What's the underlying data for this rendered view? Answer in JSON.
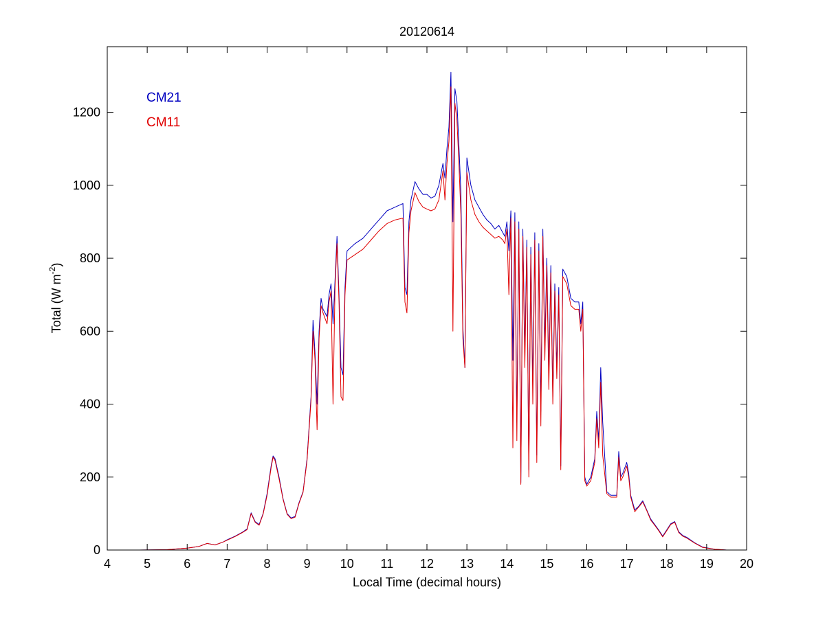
{
  "chart_data": {
    "type": "line",
    "title": "20120614",
    "xlabel": "Local Time (decimal hours)",
    "ylabel": "Total (W m",
    "ylabel_sup": "-2",
    "ylabel_end": ")",
    "xlim": [
      4,
      20
    ],
    "ylim": [
      0,
      1380
    ],
    "xticks": [
      4,
      5,
      6,
      7,
      8,
      9,
      10,
      11,
      12,
      13,
      14,
      15,
      16,
      17,
      18,
      19,
      20
    ],
    "yticks": [
      0,
      200,
      400,
      600,
      800,
      1000,
      1200
    ],
    "grid": false,
    "legend_position": "top-left",
    "series": [
      {
        "name": "CM21",
        "color": "#0000c0",
        "points": [
          [
            4.8,
            0
          ],
          [
            5.5,
            1
          ],
          [
            6.0,
            5
          ],
          [
            6.3,
            10
          ],
          [
            6.5,
            18
          ],
          [
            6.7,
            14
          ],
          [
            6.9,
            22
          ],
          [
            7.0,
            28
          ],
          [
            7.2,
            38
          ],
          [
            7.4,
            50
          ],
          [
            7.5,
            58
          ],
          [
            7.6,
            102
          ],
          [
            7.7,
            78
          ],
          [
            7.8,
            70
          ],
          [
            7.9,
            100
          ],
          [
            8.0,
            155
          ],
          [
            8.1,
            230
          ],
          [
            8.15,
            258
          ],
          [
            8.2,
            250
          ],
          [
            8.3,
            200
          ],
          [
            8.4,
            140
          ],
          [
            8.5,
            100
          ],
          [
            8.6,
            88
          ],
          [
            8.7,
            92
          ],
          [
            8.8,
            130
          ],
          [
            8.9,
            160
          ],
          [
            9.0,
            250
          ],
          [
            9.1,
            420
          ],
          [
            9.15,
            630
          ],
          [
            9.2,
            540
          ],
          [
            9.25,
            400
          ],
          [
            9.3,
            600
          ],
          [
            9.35,
            690
          ],
          [
            9.4,
            660
          ],
          [
            9.5,
            640
          ],
          [
            9.55,
            700
          ],
          [
            9.6,
            730
          ],
          [
            9.65,
            620
          ],
          [
            9.7,
            740
          ],
          [
            9.75,
            860
          ],
          [
            9.8,
            700
          ],
          [
            9.85,
            500
          ],
          [
            9.9,
            480
          ],
          [
            9.95,
            720
          ],
          [
            10.0,
            820
          ],
          [
            10.2,
            840
          ],
          [
            10.4,
            855
          ],
          [
            10.6,
            880
          ],
          [
            10.8,
            905
          ],
          [
            11.0,
            930
          ],
          [
            11.2,
            940
          ],
          [
            11.4,
            950
          ],
          [
            11.45,
            720
          ],
          [
            11.5,
            700
          ],
          [
            11.55,
            900
          ],
          [
            11.6,
            960
          ],
          [
            11.7,
            1010
          ],
          [
            11.8,
            990
          ],
          [
            11.9,
            975
          ],
          [
            12.0,
            975
          ],
          [
            12.1,
            965
          ],
          [
            12.2,
            970
          ],
          [
            12.3,
            1000
          ],
          [
            12.4,
            1060
          ],
          [
            12.45,
            1020
          ],
          [
            12.5,
            1100
          ],
          [
            12.55,
            1160
          ],
          [
            12.6,
            1310
          ],
          [
            12.65,
            900
          ],
          [
            12.7,
            1265
          ],
          [
            12.75,
            1230
          ],
          [
            12.8,
            1110
          ],
          [
            12.85,
            980
          ],
          [
            12.9,
            610
          ],
          [
            12.95,
            500
          ],
          [
            13.0,
            1075
          ],
          [
            13.1,
            1000
          ],
          [
            13.2,
            960
          ],
          [
            13.3,
            940
          ],
          [
            13.4,
            920
          ],
          [
            13.5,
            905
          ],
          [
            13.6,
            895
          ],
          [
            13.7,
            880
          ],
          [
            13.8,
            890
          ],
          [
            13.9,
            870
          ],
          [
            13.95,
            860
          ],
          [
            14.0,
            900
          ],
          [
            14.05,
            820
          ],
          [
            14.1,
            930
          ],
          [
            14.15,
            520
          ],
          [
            14.2,
            925
          ],
          [
            14.25,
            350
          ],
          [
            14.3,
            900
          ],
          [
            14.35,
            185
          ],
          [
            14.4,
            880
          ],
          [
            14.45,
            540
          ],
          [
            14.5,
            850
          ],
          [
            14.55,
            220
          ],
          [
            14.6,
            830
          ],
          [
            14.65,
            450
          ],
          [
            14.7,
            870
          ],
          [
            14.75,
            260
          ],
          [
            14.8,
            840
          ],
          [
            14.85,
            380
          ],
          [
            14.9,
            880
          ],
          [
            14.95,
            560
          ],
          [
            15.0,
            800
          ],
          [
            15.05,
            480
          ],
          [
            15.1,
            780
          ],
          [
            15.15,
            420
          ],
          [
            15.2,
            730
          ],
          [
            15.25,
            500
          ],
          [
            15.3,
            720
          ],
          [
            15.35,
            230
          ],
          [
            15.4,
            770
          ],
          [
            15.5,
            750
          ],
          [
            15.6,
            690
          ],
          [
            15.7,
            680
          ],
          [
            15.8,
            680
          ],
          [
            15.85,
            620
          ],
          [
            15.9,
            680
          ],
          [
            15.95,
            200
          ],
          [
            16.0,
            180
          ],
          [
            16.1,
            200
          ],
          [
            16.2,
            250
          ],
          [
            16.25,
            380
          ],
          [
            16.3,
            300
          ],
          [
            16.35,
            500
          ],
          [
            16.4,
            350
          ],
          [
            16.5,
            160
          ],
          [
            16.6,
            150
          ],
          [
            16.7,
            150
          ],
          [
            16.75,
            150
          ],
          [
            16.8,
            270
          ],
          [
            16.85,
            200
          ],
          [
            16.9,
            210
          ],
          [
            17.0,
            240
          ],
          [
            17.05,
            210
          ],
          [
            17.1,
            150
          ],
          [
            17.2,
            110
          ],
          [
            17.3,
            120
          ],
          [
            17.4,
            135
          ],
          [
            17.5,
            110
          ],
          [
            17.6,
            85
          ],
          [
            17.7,
            70
          ],
          [
            17.8,
            55
          ],
          [
            17.9,
            38
          ],
          [
            18.0,
            55
          ],
          [
            18.1,
            72
          ],
          [
            18.2,
            78
          ],
          [
            18.3,
            50
          ],
          [
            18.4,
            40
          ],
          [
            18.5,
            35
          ],
          [
            18.7,
            20
          ],
          [
            18.9,
            8
          ],
          [
            19.2,
            2
          ],
          [
            19.5,
            0
          ]
        ]
      },
      {
        "name": "CM11",
        "color": "#e00000",
        "points": [
          [
            4.8,
            0
          ],
          [
            5.5,
            1
          ],
          [
            6.0,
            5
          ],
          [
            6.3,
            10
          ],
          [
            6.5,
            18
          ],
          [
            6.7,
            14
          ],
          [
            6.9,
            22
          ],
          [
            7.0,
            27
          ],
          [
            7.2,
            37
          ],
          [
            7.4,
            49
          ],
          [
            7.5,
            56
          ],
          [
            7.6,
            100
          ],
          [
            7.7,
            76
          ],
          [
            7.8,
            68
          ],
          [
            7.9,
            98
          ],
          [
            8.0,
            150
          ],
          [
            8.1,
            225
          ],
          [
            8.15,
            255
          ],
          [
            8.2,
            245
          ],
          [
            8.3,
            195
          ],
          [
            8.4,
            138
          ],
          [
            8.5,
            98
          ],
          [
            8.6,
            86
          ],
          [
            8.7,
            90
          ],
          [
            8.8,
            128
          ],
          [
            8.9,
            158
          ],
          [
            9.0,
            245
          ],
          [
            9.1,
            410
          ],
          [
            9.15,
            600
          ],
          [
            9.2,
            520
          ],
          [
            9.25,
            330
          ],
          [
            9.3,
            580
          ],
          [
            9.35,
            670
          ],
          [
            9.4,
            650
          ],
          [
            9.5,
            620
          ],
          [
            9.55,
            680
          ],
          [
            9.6,
            710
          ],
          [
            9.65,
            400
          ],
          [
            9.7,
            720
          ],
          [
            9.75,
            840
          ],
          [
            9.8,
            680
          ],
          [
            9.85,
            420
          ],
          [
            9.9,
            410
          ],
          [
            9.95,
            700
          ],
          [
            10.0,
            795
          ],
          [
            10.2,
            810
          ],
          [
            10.4,
            825
          ],
          [
            10.6,
            850
          ],
          [
            10.8,
            875
          ],
          [
            11.0,
            895
          ],
          [
            11.2,
            905
          ],
          [
            11.4,
            910
          ],
          [
            11.45,
            680
          ],
          [
            11.5,
            650
          ],
          [
            11.55,
            870
          ],
          [
            11.6,
            930
          ],
          [
            11.7,
            980
          ],
          [
            11.8,
            955
          ],
          [
            11.9,
            940
          ],
          [
            12.0,
            935
          ],
          [
            12.1,
            930
          ],
          [
            12.2,
            935
          ],
          [
            12.3,
            960
          ],
          [
            12.4,
            1040
          ],
          [
            12.45,
            960
          ],
          [
            12.5,
            1060
          ],
          [
            12.55,
            1120
          ],
          [
            12.6,
            1270
          ],
          [
            12.65,
            600
          ],
          [
            12.7,
            1225
          ],
          [
            12.75,
            1180
          ],
          [
            12.8,
            1060
          ],
          [
            12.85,
            920
          ],
          [
            12.9,
            580
          ],
          [
            12.95,
            500
          ],
          [
            13.0,
            1035
          ],
          [
            13.1,
            960
          ],
          [
            13.2,
            920
          ],
          [
            13.3,
            900
          ],
          [
            13.4,
            885
          ],
          [
            13.5,
            875
          ],
          [
            13.6,
            865
          ],
          [
            13.7,
            855
          ],
          [
            13.8,
            860
          ],
          [
            13.9,
            850
          ],
          [
            13.95,
            840
          ],
          [
            14.0,
            880
          ],
          [
            14.05,
            700
          ],
          [
            14.1,
            910
          ],
          [
            14.15,
            280
          ],
          [
            14.2,
            900
          ],
          [
            14.25,
            300
          ],
          [
            14.3,
            880
          ],
          [
            14.35,
            180
          ],
          [
            14.4,
            860
          ],
          [
            14.45,
            500
          ],
          [
            14.5,
            830
          ],
          [
            14.55,
            200
          ],
          [
            14.6,
            810
          ],
          [
            14.65,
            400
          ],
          [
            14.7,
            850
          ],
          [
            14.75,
            240
          ],
          [
            14.8,
            820
          ],
          [
            14.85,
            340
          ],
          [
            14.9,
            860
          ],
          [
            14.95,
            520
          ],
          [
            15.0,
            780
          ],
          [
            15.05,
            440
          ],
          [
            15.1,
            760
          ],
          [
            15.15,
            400
          ],
          [
            15.2,
            710
          ],
          [
            15.25,
            470
          ],
          [
            15.3,
            700
          ],
          [
            15.35,
            220
          ],
          [
            15.4,
            750
          ],
          [
            15.5,
            730
          ],
          [
            15.6,
            670
          ],
          [
            15.7,
            660
          ],
          [
            15.8,
            660
          ],
          [
            15.85,
            600
          ],
          [
            15.9,
            660
          ],
          [
            15.95,
            190
          ],
          [
            16.0,
            175
          ],
          [
            16.1,
            190
          ],
          [
            16.2,
            240
          ],
          [
            16.25,
            360
          ],
          [
            16.3,
            280
          ],
          [
            16.35,
            460
          ],
          [
            16.4,
            260
          ],
          [
            16.5,
            155
          ],
          [
            16.6,
            145
          ],
          [
            16.7,
            145
          ],
          [
            16.75,
            145
          ],
          [
            16.8,
            255
          ],
          [
            16.85,
            190
          ],
          [
            16.9,
            200
          ],
          [
            17.0,
            230
          ],
          [
            17.05,
            200
          ],
          [
            17.1,
            145
          ],
          [
            17.2,
            105
          ],
          [
            17.3,
            118
          ],
          [
            17.4,
            132
          ],
          [
            17.5,
            108
          ],
          [
            17.6,
            82
          ],
          [
            17.7,
            68
          ],
          [
            17.8,
            53
          ],
          [
            17.9,
            36
          ],
          [
            18.0,
            53
          ],
          [
            18.1,
            70
          ],
          [
            18.2,
            76
          ],
          [
            18.3,
            48
          ],
          [
            18.4,
            38
          ],
          [
            18.5,
            33
          ],
          [
            18.7,
            19
          ],
          [
            18.9,
            7
          ],
          [
            19.2,
            2
          ],
          [
            19.5,
            0
          ]
        ]
      }
    ]
  }
}
